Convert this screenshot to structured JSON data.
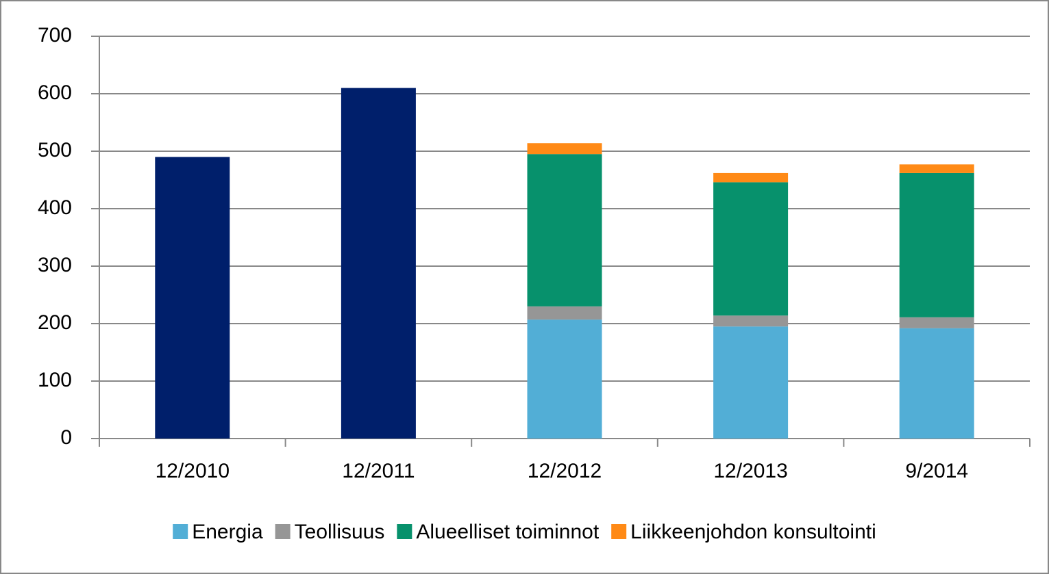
{
  "chart_data": {
    "type": "stacked_bar",
    "categories": [
      "12/2010",
      "12/2011",
      "12/2012",
      "12/2013",
      "9/2014"
    ],
    "series": [
      {
        "color": "#001f6b",
        "values": [
          490,
          610,
          null,
          null,
          null
        ]
      },
      {
        "name": "Energia",
        "color": "#52aed6",
        "values": [
          null,
          null,
          207,
          195,
          192
        ]
      },
      {
        "name": "Teollisuus",
        "color": "#969696",
        "values": [
          null,
          null,
          23,
          19,
          19
        ]
      },
      {
        "name": "Alueelliset toiminnot",
        "color": "#07916c",
        "values": [
          null,
          null,
          265,
          232,
          251
        ]
      },
      {
        "name": "Liikkeenjohdon konsultointi",
        "color": "#ff8a16",
        "values": [
          null,
          null,
          19,
          16,
          15
        ]
      }
    ],
    "ylim": [
      0,
      700
    ],
    "yticks": [
      0,
      100,
      200,
      300,
      400,
      500,
      600,
      700
    ],
    "grid": true,
    "legend": "bottom"
  }
}
